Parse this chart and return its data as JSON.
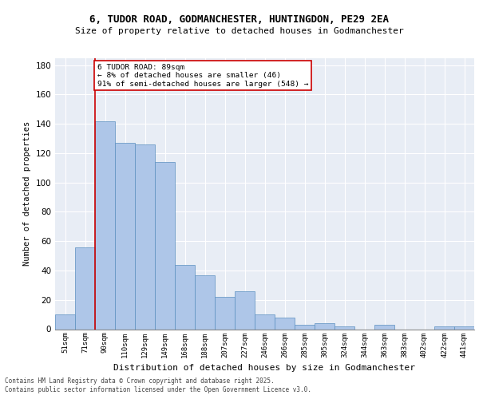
{
  "title_line1": "6, TUDOR ROAD, GODMANCHESTER, HUNTINGDON, PE29 2EA",
  "title_line2": "Size of property relative to detached houses in Godmanchester",
  "xlabel": "Distribution of detached houses by size in Godmanchester",
  "ylabel": "Number of detached properties",
  "categories": [
    "51sqm",
    "71sqm",
    "90sqm",
    "110sqm",
    "129sqm",
    "149sqm",
    "168sqm",
    "188sqm",
    "207sqm",
    "227sqm",
    "246sqm",
    "266sqm",
    "285sqm",
    "305sqm",
    "324sqm",
    "344sqm",
    "363sqm",
    "383sqm",
    "402sqm",
    "422sqm",
    "441sqm"
  ],
  "hist_values": [
    10,
    56,
    142,
    127,
    126,
    114,
    44,
    37,
    22,
    26,
    10,
    8,
    3,
    4,
    2,
    0,
    3,
    0,
    0,
    2,
    2
  ],
  "bar_color": "#aec6e8",
  "bar_edge_color": "#5a8fc0",
  "background_color": "#e8edf5",
  "grid_color": "#ffffff",
  "red_line_index": 2,
  "annotation_text": "6 TUDOR ROAD: 89sqm\n← 8% of detached houses are smaller (46)\n91% of semi-detached houses are larger (548) →",
  "annotation_box_color": "#ffffff",
  "annotation_box_edge": "#cc0000",
  "ylim": [
    0,
    185
  ],
  "yticks": [
    0,
    20,
    40,
    60,
    80,
    100,
    120,
    140,
    160,
    180
  ],
  "footer_line1": "Contains HM Land Registry data © Crown copyright and database right 2025.",
  "footer_line2": "Contains public sector information licensed under the Open Government Licence v3.0."
}
